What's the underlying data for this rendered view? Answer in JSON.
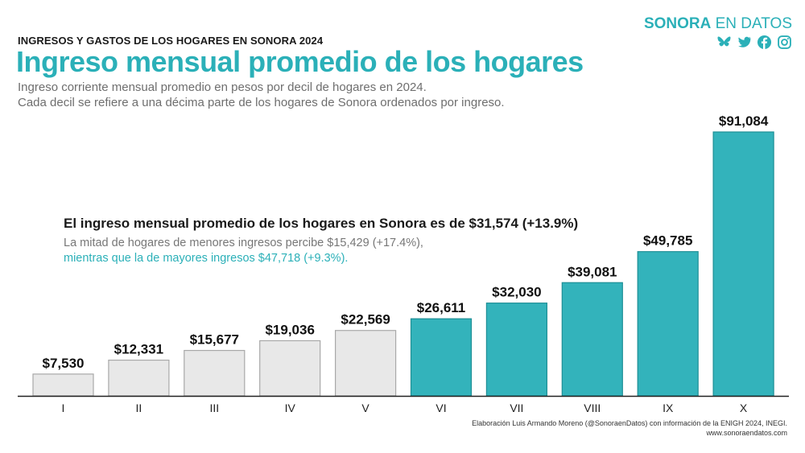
{
  "header": {
    "kicker": "INGRESOS Y GASTOS DE LOS HOGARES EN SONORA 2024",
    "title": "Ingreso mensual promedio de los hogares",
    "subtitle_line1": "Ingreso corriente mensual promedio en pesos por decil de hogares en 2024.",
    "subtitle_line2": "Cada decil se refiere a una décima parte de los hogares de Sonora ordenados por ingreso."
  },
  "brand": {
    "part1": "SONORA",
    "part2": " EN DATOS",
    "social_icons": [
      "bluesky-icon",
      "twitter-icon",
      "facebook-icon",
      "instagram-icon"
    ]
  },
  "annotation": {
    "headline": "El ingreso mensual promedio de los hogares en Sonora es de $31,574 (+13.9%)",
    "line1": "La mitad de hogares de menores ingresos percibe $15,429 (+17.4%),",
    "line2": "mientras que la de mayores ingresos $47,718 (+9.3%)."
  },
  "footer": {
    "credit": "Elaboración Luis Armando Moreno (@SonoraenDatos) con información de la ENIGH 2024, INEGI.",
    "url": "www.sonoraendatos.com"
  },
  "colors": {
    "accent": "#2bb0b8",
    "bar_low": "#e8e8e8",
    "bar_low_border": "#a8a8a8",
    "bar_high": "#33b3bb",
    "bar_high_border": "#1e8f96"
  },
  "chart_data": {
    "type": "bar",
    "categories": [
      "I",
      "II",
      "III",
      "IV",
      "V",
      "VI",
      "VII",
      "VIII",
      "IX",
      "X"
    ],
    "values": [
      7530,
      12331,
      15677,
      19036,
      22569,
      26611,
      32030,
      39081,
      49785,
      91084
    ],
    "value_labels": [
      "$7,530",
      "$12,331",
      "$15,677",
      "$19,036",
      "$22,569",
      "$26,611",
      "$32,030",
      "$39,081",
      "$49,785",
      "$91,084"
    ],
    "highlight": [
      false,
      false,
      false,
      false,
      false,
      true,
      true,
      true,
      true,
      true
    ],
    "ylim": [
      0,
      91084
    ],
    "grid": false,
    "legend": "none"
  }
}
